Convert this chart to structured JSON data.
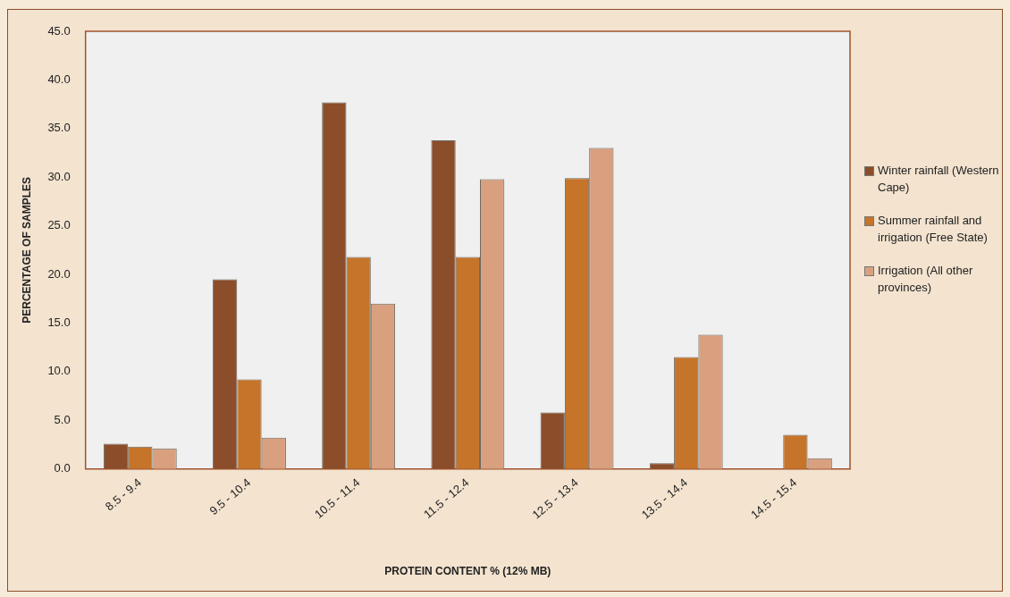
{
  "chart_data": {
    "type": "bar",
    "xlabel": "PROTEIN CONTENT % (12% MB)",
    "ylabel": "PERCENTAGE OF SAMPLES",
    "categories": [
      "8.5 - 9.4",
      "9.5 - 10.4",
      "10.5 - 11.4",
      "11.5 - 12.4",
      "12.5 - 13.4",
      "13.5 - 14.4",
      "14.5 - 15.4"
    ],
    "series": [
      {
        "name": "Winter rainfall (Western Cape)",
        "color": "#8b4d2a",
        "values": [
          2.6,
          19.5,
          37.7,
          33.8,
          5.8,
          0.6,
          0
        ]
      },
      {
        "name": "Summer rainfall and irrigation (Free State)",
        "color": "#c57429",
        "values": [
          2.3,
          9.2,
          21.8,
          21.8,
          29.9,
          11.5,
          3.5
        ]
      },
      {
        "name": "Irrigation (All other provinces)",
        "color": "#d9a080",
        "values": [
          2.1,
          3.2,
          17.0,
          29.8,
          33.0,
          13.8,
          1.1
        ]
      }
    ],
    "ylim": [
      0,
      45
    ],
    "yticks": [
      {
        "value": 0,
        "label": "0.0"
      },
      {
        "value": 5,
        "label": "5.0"
      },
      {
        "value": 10,
        "label": "10.0"
      },
      {
        "value": 15,
        "label": "15.0"
      },
      {
        "value": 20,
        "label": "20.0"
      },
      {
        "value": 25,
        "label": "25.0"
      },
      {
        "value": 30,
        "label": "30.0"
      },
      {
        "value": 35,
        "label": "35.0"
      },
      {
        "value": 40,
        "label": "40.0"
      },
      {
        "value": 45,
        "label": "45.0"
      }
    ],
    "grid": false,
    "legend": "right"
  }
}
